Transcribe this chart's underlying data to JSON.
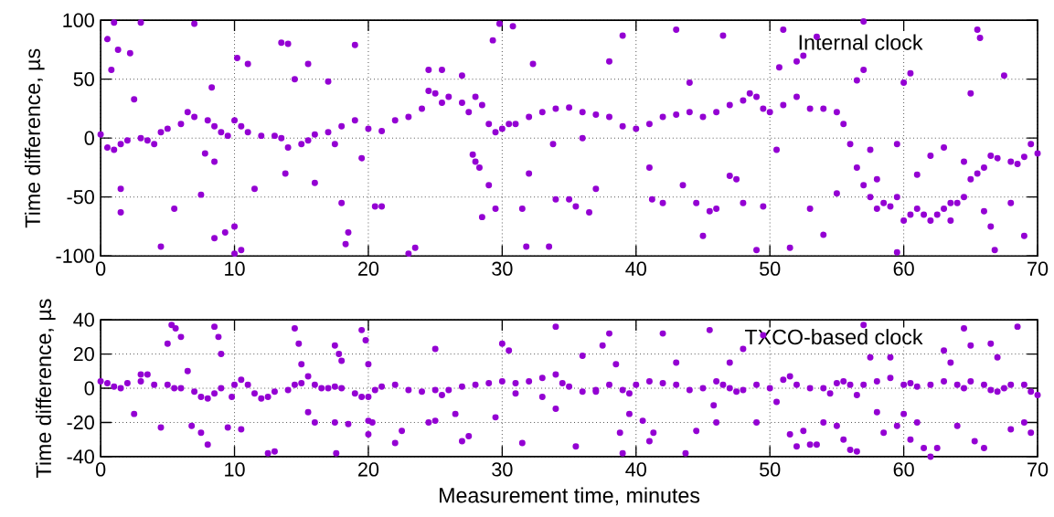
{
  "chart_data": [
    {
      "type": "scatter",
      "ylabel": "Time difference, µs",
      "annotations": [
        "Internal clock"
      ],
      "color": "#9400d3",
      "marker": "circle",
      "grid": true,
      "xlim": [
        0,
        70
      ],
      "xticks": [
        0,
        10,
        20,
        30,
        40,
        50,
        60,
        70
      ],
      "ylim": [
        -100,
        100
      ],
      "yticks": [
        -100,
        -50,
        0,
        50,
        100
      ],
      "x": [
        0,
        0.5,
        1,
        1.5,
        2,
        3,
        3.5,
        4,
        4.5,
        5,
        6,
        6.5,
        7,
        8,
        8.5,
        9,
        9.5,
        10,
        10.5,
        11,
        12,
        13,
        13.5,
        14,
        15,
        15.5,
        16,
        17,
        18,
        19,
        20,
        21,
        22,
        23,
        24,
        24.5,
        25,
        25.5,
        26,
        27,
        27.5,
        28,
        28.5,
        29,
        29.5,
        30,
        30.5,
        31,
        32,
        33,
        34,
        35,
        36,
        37,
        38,
        39,
        40,
        41,
        42,
        43,
        44,
        45,
        46,
        47,
        48,
        49,
        49.5,
        50,
        51,
        52,
        53,
        54,
        55,
        55.5,
        56,
        56.5,
        57,
        57.5,
        58,
        58.5,
        59,
        59.5,
        60,
        60.5,
        61,
        61.5,
        62,
        63,
        63.5,
        64,
        64.5,
        65,
        65.5,
        66,
        66.5,
        67,
        68,
        68.5,
        69,
        70,
        0.5,
        0.8,
        1,
        1.3,
        2.2,
        3,
        2.5,
        7,
        1.5,
        1.5,
        4.5,
        5.5,
        7.5,
        8.5,
        7.8,
        8.5,
        8.3,
        9.3,
        10,
        10,
        10.5,
        10.2,
        11.5,
        11,
        13.5,
        14,
        13.8,
        14.5,
        15.5,
        16,
        17,
        17.5,
        18,
        18.5,
        18.3,
        19,
        19.5,
        20.5,
        21,
        23,
        23.5,
        24.5,
        25.5,
        27,
        27.8,
        28,
        29,
        28.5,
        29.5,
        28.3,
        29.8,
        29.3,
        30.8,
        31.5,
        31.8,
        32,
        32.3,
        33.5,
        34,
        33.8,
        35,
        36,
        35.5,
        36.5,
        37,
        38,
        39,
        41,
        41.2,
        42,
        43,
        43.5,
        44,
        44.5,
        45,
        45.5,
        46,
        46.5,
        47,
        47.5,
        48,
        48.5,
        49,
        49.5,
        50.5,
        50.7,
        51,
        51.5,
        52,
        52.5,
        53,
        53.5,
        54,
        55,
        56.5,
        57,
        57,
        57.5,
        58,
        59.5,
        59.5,
        60,
        60.5,
        61,
        62,
        62.5,
        63,
        63.5,
        64.5,
        65,
        65.5,
        65.7,
        66,
        66.5,
        66.8,
        67.5,
        69,
        69.5,
        68
      ],
      "values": [
        3,
        -8,
        -10,
        -5,
        -2,
        0,
        -2,
        -5,
        5,
        8,
        12,
        22,
        18,
        15,
        10,
        5,
        2,
        15,
        10,
        5,
        2,
        2,
        0,
        -8,
        -5,
        -2,
        3,
        5,
        10,
        15,
        8,
        6,
        15,
        18,
        25,
        40,
        38,
        30,
        35,
        30,
        22,
        35,
        28,
        12,
        5,
        8,
        12,
        12,
        18,
        22,
        25,
        26,
        22,
        20,
        18,
        10,
        8,
        12,
        18,
        20,
        22,
        18,
        22,
        28,
        32,
        35,
        25,
        22,
        28,
        35,
        25,
        25,
        22,
        12,
        -5,
        -25,
        -40,
        -50,
        -60,
        -55,
        -58,
        -50,
        -70,
        -65,
        -60,
        -65,
        -70,
        -60,
        -55,
        -55,
        -50,
        -35,
        -30,
        -25,
        -15,
        -17,
        -20,
        -22,
        -16,
        -13,
        84,
        58,
        98,
        75,
        72,
        98,
        33,
        97,
        -43,
        -63,
        -92,
        -60,
        -48,
        -85,
        -13,
        -20,
        43,
        -80,
        -75,
        -98,
        -95,
        68,
        -43,
        63,
        81,
        80,
        -30,
        50,
        63,
        -38,
        48,
        -5,
        -55,
        -80,
        -90,
        79,
        -17,
        -58,
        -58,
        -98,
        -93,
        58,
        58,
        53,
        -14,
        -20,
        -40,
        -67,
        -60,
        -25,
        97,
        83,
        95,
        -60,
        -92,
        -30,
        63,
        -92,
        -52,
        -5,
        -52,
        0,
        -58,
        -63,
        -43,
        65,
        87,
        -25,
        -52,
        -55,
        92,
        -40,
        47,
        -55,
        -83,
        -62,
        -60,
        87,
        -32,
        -35,
        -55,
        38,
        -95,
        -58,
        -10,
        60,
        92,
        -93,
        65,
        70,
        -60,
        86,
        -82,
        -47,
        49,
        58,
        99,
        -10,
        -35,
        -97,
        -5,
        47,
        55,
        -31,
        -15,
        -65,
        -8,
        -70,
        -20,
        38,
        92,
        85,
        -62,
        -75,
        -95,
        53,
        -83,
        -5,
        -55
      ]
    },
    {
      "type": "scatter",
      "ylabel": "Time difference, µs",
      "xlabel": "Measurement time, minutes",
      "annotations": [
        "TXCO-based clock"
      ],
      "color": "#9400d3",
      "marker": "circle",
      "grid": true,
      "xlim": [
        0,
        70
      ],
      "xticks": [
        0,
        10,
        20,
        30,
        40,
        50,
        60,
        70
      ],
      "ylim": [
        -40,
        40
      ],
      "yticks": [
        -40,
        -20,
        0,
        20,
        40
      ],
      "x": [
        0,
        0.5,
        1,
        1.5,
        2,
        3,
        4,
        5,
        5.5,
        6,
        7,
        7.5,
        8,
        8.5,
        9,
        10,
        10.5,
        11,
        11.5,
        12,
        12.5,
        13,
        14,
        14.5,
        15,
        15.5,
        16,
        16.5,
        17,
        17.5,
        18,
        19,
        19.5,
        20,
        20.5,
        21,
        22,
        23,
        24,
        25,
        25.5,
        26,
        27,
        28,
        29,
        30,
        31,
        32,
        33,
        34,
        34.5,
        35,
        36,
        37,
        38,
        39,
        39.5,
        40,
        41,
        42,
        43,
        44,
        45,
        46,
        46.5,
        47,
        47.5,
        48,
        49,
        50,
        51,
        51.5,
        52,
        53,
        54,
        55,
        55.5,
        56,
        56.5,
        57,
        58,
        59,
        60,
        60.5,
        61,
        62,
        63,
        64,
        64.5,
        65,
        66,
        66.5,
        67,
        67.5,
        68,
        69,
        69.5,
        70,
        5.3,
        5.6,
        5,
        6,
        6.5,
        6.8,
        7.5,
        8,
        8.5,
        8.8,
        9,
        9.5,
        9.8,
        2.5,
        3,
        3.5,
        4.5,
        10.5,
        12.5,
        13,
        14.5,
        14.8,
        15,
        15.5,
        16,
        17.5,
        17.8,
        18,
        17.5,
        17.6,
        18.5,
        19.5,
        19.8,
        20,
        20,
        20,
        20.3,
        22,
        22.5,
        24.5,
        25,
        26.5,
        27.5,
        25,
        27,
        29.5,
        30,
        30.5,
        31,
        31.5,
        33,
        34,
        34,
        35.5,
        37,
        37.5,
        38,
        38.5,
        38.8,
        39,
        39.5,
        36,
        40.5,
        41,
        41.3,
        42,
        43,
        43.7,
        44.5,
        45.5,
        45.8,
        46,
        47,
        48,
        49,
        49.5,
        50.5,
        51.5,
        52,
        52.5,
        53,
        53.5,
        54,
        54.5,
        55,
        55.5,
        56,
        56.5,
        57,
        57.5,
        58,
        58.5,
        59,
        59.5,
        60,
        60.5,
        61,
        61.5,
        62,
        62.5,
        63,
        63.5,
        64,
        64.5,
        65,
        65.3,
        66,
        66.5,
        67,
        68,
        68.5,
        69,
        69.5
      ],
      "values": [
        4,
        3,
        1,
        0,
        3,
        4,
        2,
        2,
        0,
        0,
        -2,
        -5,
        -6,
        -3,
        0,
        2,
        5,
        2,
        -3,
        -6,
        -5,
        -2,
        -1,
        2,
        3,
        7,
        2,
        0,
        0,
        1,
        0,
        -3,
        -5,
        -5,
        -1,
        1,
        2,
        -1,
        -2,
        -1,
        -4,
        -1,
        1,
        2,
        3,
        4,
        3,
        4,
        6,
        8,
        3,
        1,
        -2,
        -1,
        2,
        -1,
        -3,
        2,
        4,
        3,
        2,
        -1,
        0,
        4,
        2,
        0,
        -2,
        -1,
        2,
        0,
        5,
        7,
        2,
        0,
        0,
        3,
        4,
        2,
        -4,
        2,
        4,
        6,
        2,
        3,
        1,
        2,
        4,
        2,
        0,
        4,
        2,
        -1,
        -2,
        0,
        2,
        2,
        -2,
        -4,
        37,
        35,
        26,
        30,
        10,
        -22,
        -26,
        -33,
        36,
        30,
        20,
        -23,
        -5,
        -15,
        8,
        8,
        -23,
        -24,
        -38,
        -37,
        35,
        26,
        14,
        -14,
        -20,
        25,
        20,
        16,
        -20,
        -38,
        -21,
        34,
        28,
        14,
        -19,
        -27,
        -20,
        -32,
        -25,
        -20,
        -19,
        -15,
        -28,
        23,
        -31,
        -17,
        26,
        22,
        -3,
        -32,
        -5,
        36,
        -12,
        -34,
        -2,
        25,
        32,
        14,
        -26,
        -38,
        -15,
        19,
        -19,
        -31,
        -26,
        32,
        15,
        -38,
        -25,
        34,
        -10,
        -20,
        15,
        23,
        -20,
        31,
        -8,
        -27,
        -34,
        -25,
        -33,
        -33,
        -20,
        -3,
        -22,
        -30,
        -36,
        -37,
        37,
        18,
        -14,
        -26,
        18,
        -22,
        -15,
        -30,
        -20,
        -35,
        -40,
        -35,
        22,
        15,
        -22,
        35,
        25,
        -31,
        -35,
        26,
        18,
        -24,
        36,
        -20,
        -26
      ]
    }
  ]
}
